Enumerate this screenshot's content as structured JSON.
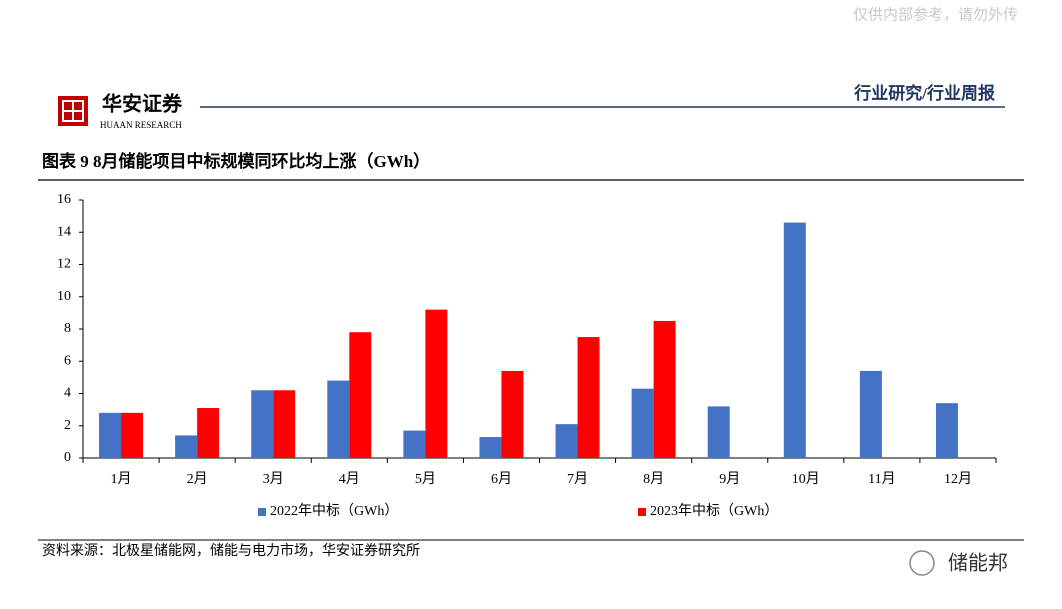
{
  "header": {
    "watermark": "仅供内部参考，请勿外传",
    "logo_name": "华安证券",
    "logo_sub": "HUAAN RESEARCH",
    "section": "行业研究/行业周报"
  },
  "chart_data": {
    "type": "bar",
    "title": "图表 9 8月储能项目中标规模同环比均上涨（GWh）",
    "categories": [
      "1月",
      "2月",
      "3月",
      "4月",
      "5月",
      "6月",
      "7月",
      "8月",
      "9月",
      "10月",
      "11月",
      "12月"
    ],
    "series": [
      {
        "name": "2022年中标（GWh）",
        "color": "#4472c4",
        "values": [
          2.8,
          1.4,
          4.2,
          4.8,
          1.7,
          1.3,
          2.1,
          4.3,
          3.2,
          14.6,
          5.4,
          3.4
        ]
      },
      {
        "name": "2023年中标（GWh）",
        "color": "#ff0000",
        "values": [
          2.8,
          3.1,
          4.2,
          7.8,
          9.2,
          5.4,
          7.5,
          8.5,
          null,
          null,
          null,
          null
        ]
      }
    ],
    "ylim": [
      0,
      16
    ],
    "yticks": [
      0,
      2,
      4,
      6,
      8,
      10,
      12,
      14,
      16
    ],
    "grid": false,
    "legend": "bottom"
  },
  "footer": {
    "source": "资料来源：北极星储能网，储能与电力市场，华安证券研究所",
    "wechat": "储能邦"
  }
}
